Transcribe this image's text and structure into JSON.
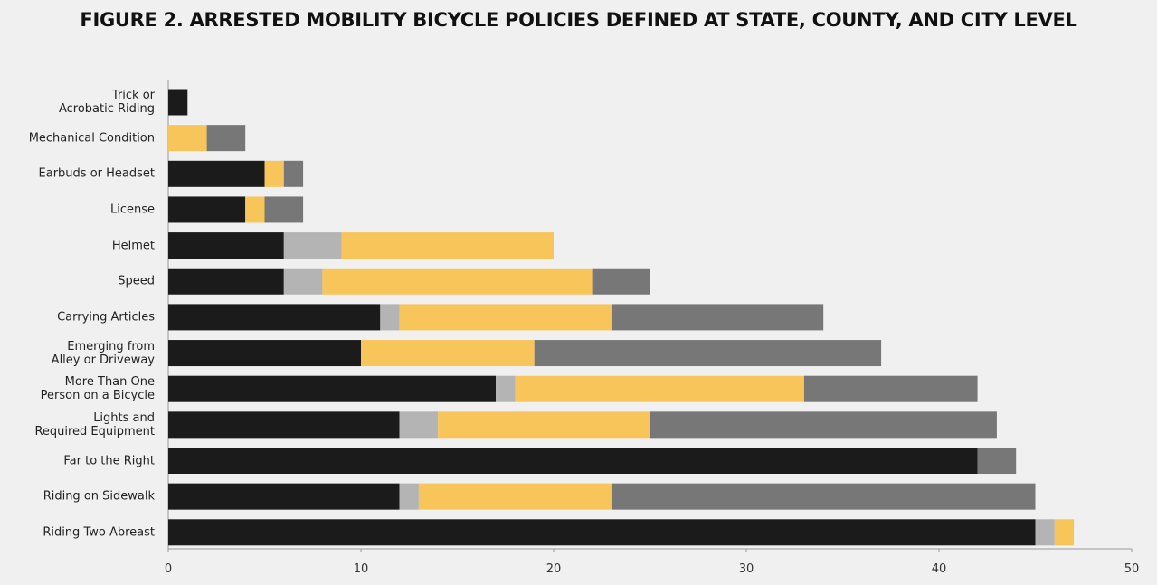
{
  "chart_data": {
    "type": "stacked-barh",
    "title": "FIGURE 2. ARRESTED MOBILITY BICYCLE POLICIES DEFINED AT STATE, COUNTY, AND CITY LEVEL",
    "categories": [
      "Trick or\nAcrobatic Riding",
      "Mechanical Condition",
      "Earbuds or Headset",
      "License",
      "Helmet",
      "Speed",
      "Carrying Articles",
      "Emerging from\nAlley or Driveway",
      "More Than One\nPerson on a Bicycle",
      "Lights and\nRequired Equipment",
      "Far to the Right",
      "Riding on Sidewalk",
      "Riding Two Abreast"
    ],
    "series": [
      {
        "color": "#1b1b1b",
        "values": [
          1,
          0,
          5,
          4,
          6,
          6,
          11,
          10,
          17,
          12,
          42,
          12,
          45
        ]
      },
      {
        "color": "#b4b4b4",
        "values": [
          0,
          0,
          0,
          0,
          3,
          2,
          1,
          0,
          1,
          2,
          0,
          1,
          1
        ]
      },
      {
        "color": "#f7c55a",
        "values": [
          0,
          2,
          1,
          1,
          11,
          14,
          11,
          9,
          15,
          11,
          0,
          10,
          1
        ]
      },
      {
        "color": "#777777",
        "values": [
          0,
          2,
          1,
          2,
          0,
          3,
          11,
          18,
          9,
          18,
          2,
          22,
          0
        ]
      }
    ],
    "xlim": [
      0,
      50
    ],
    "xticks": [
      0,
      10,
      20,
      30,
      40,
      50
    ]
  }
}
